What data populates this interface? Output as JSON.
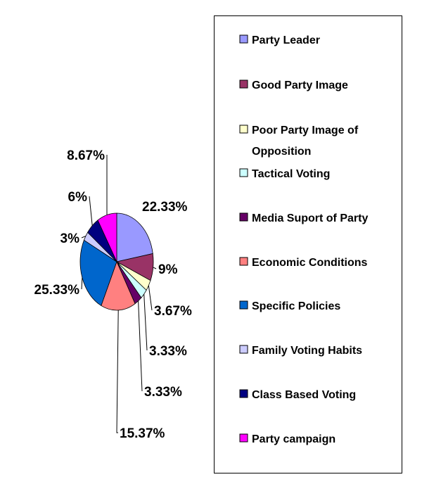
{
  "chart_data": {
    "type": "pie",
    "title": "",
    "legend_position": "right",
    "slices": [
      {
        "name": "Party Leader",
        "label": "22.33%",
        "value": 22.33,
        "color": "#9999ff"
      },
      {
        "name": "Good Party Image",
        "label": "9%",
        "value": 9,
        "color": "#993366"
      },
      {
        "name": "Poor Party Image of Opposition",
        "label": "3.67%",
        "value": 3.67,
        "color": "#ffffcc"
      },
      {
        "name": "Tactical Voting",
        "label": "3.33%",
        "value": 3.33,
        "color": "#ccffff"
      },
      {
        "name": "Media Suport of Party",
        "label": "3.33%",
        "value": 3.33,
        "color": "#660066"
      },
      {
        "name": "Economic Conditions",
        "label": "15.37%",
        "value": 15.37,
        "color": "#ff8080"
      },
      {
        "name": "Specific Policies",
        "label": "25.33%",
        "value": 25.33,
        "color": "#0066cc"
      },
      {
        "name": "Family Voting Habits",
        "label": "3%",
        "value": 3,
        "color": "#ccccff"
      },
      {
        "name": "Class Based Voting",
        "label": "6%",
        "value": 6,
        "color": "#000080"
      },
      {
        "name": "Party campaign",
        "label": "8.67%",
        "value": 8.67,
        "color": "#ff00ff"
      }
    ]
  }
}
